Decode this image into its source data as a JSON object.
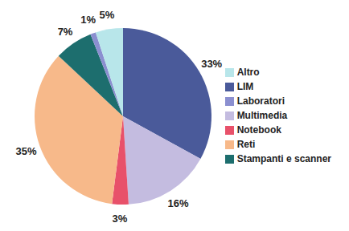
{
  "chart_data": {
    "type": "pie",
    "categories": [
      "LIM",
      "Multimedia",
      "Notebook",
      "Reti",
      "Stampanti e scanner",
      "Laboratori",
      "Altro"
    ],
    "values": [
      33,
      16,
      3,
      35,
      7,
      1,
      5
    ],
    "value_labels": [
      "33%",
      "16%",
      "3%",
      "35%",
      "7%",
      "1%",
      "5%"
    ],
    "colors": [
      "#4a5a9a",
      "#c4bce0",
      "#e8516a",
      "#f7b98a",
      "#1d6e6e",
      "#8b8fd0",
      "#b8e6ea"
    ],
    "data_labels": true,
    "legend": "right"
  }
}
